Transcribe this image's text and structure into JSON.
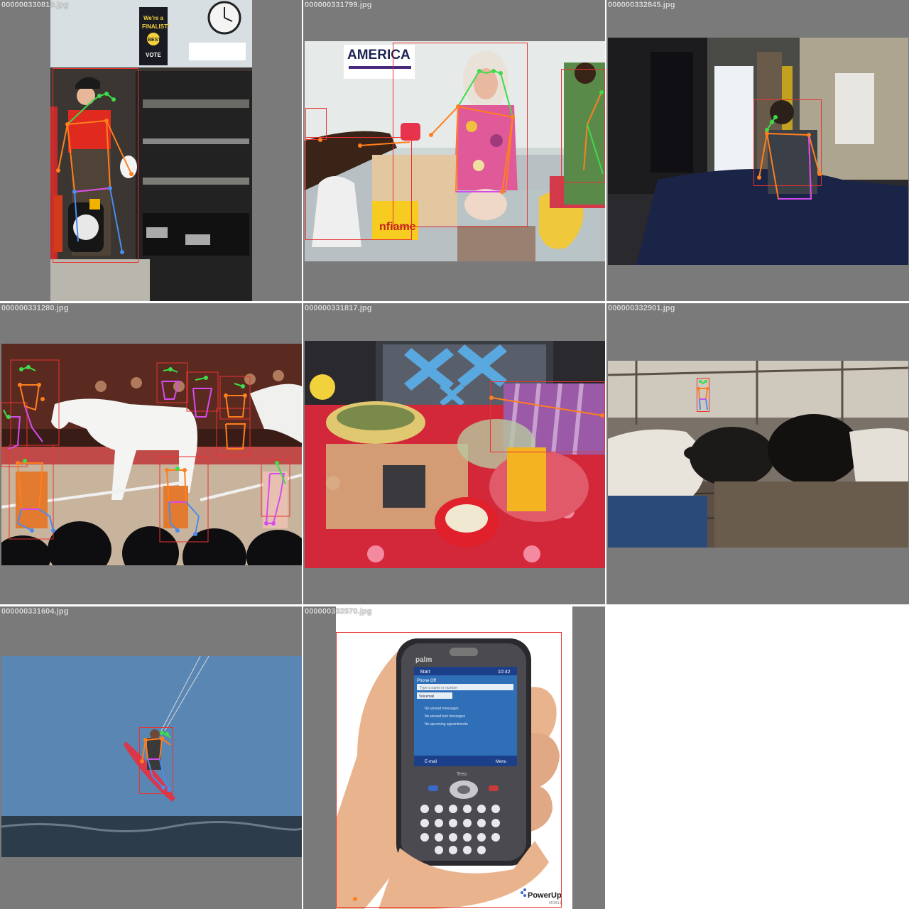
{
  "grid": {
    "tiles": [
      {
        "filename": "000000330818.jpg",
        "scene": "kitchen",
        "text_items": [
          "We're a",
          "FINALIST!",
          "BEST",
          "VOTE"
        ]
      },
      {
        "filename": "000000331799.jpg",
        "scene": "market",
        "text_items": [
          "AMERICA",
          "nfiame"
        ]
      },
      {
        "filename": "000000332845.jpg",
        "scene": "bedroom"
      },
      {
        "filename": "000000331280.jpg",
        "scene": "circus"
      },
      {
        "filename": "000000331817.jpg",
        "scene": "table"
      },
      {
        "filename": "000000332901.jpg",
        "scene": "barn"
      },
      {
        "filename": "000000331604.jpg",
        "scene": "kitesurf"
      },
      {
        "filename": "000000332570.jpg",
        "scene": "phone",
        "text_items": [
          "palm",
          "Start",
          "10:42",
          "Phone Off",
          "Type a name or number",
          "Voicemail",
          "No unread messages",
          "No unread text messages",
          "No upcoming appointments",
          "E-mail",
          "Menu",
          "Treo",
          "PowerUp",
          "MOBILE"
        ]
      }
    ]
  },
  "colors": {
    "bbox": "#e8332f",
    "kp_head": "#3ddc4a",
    "kp_arm": "#ff7f1e",
    "kp_torso": "#d64bf0",
    "kp_leg": "#4a8cf0",
    "tile_bg": "#7a7a7a"
  }
}
